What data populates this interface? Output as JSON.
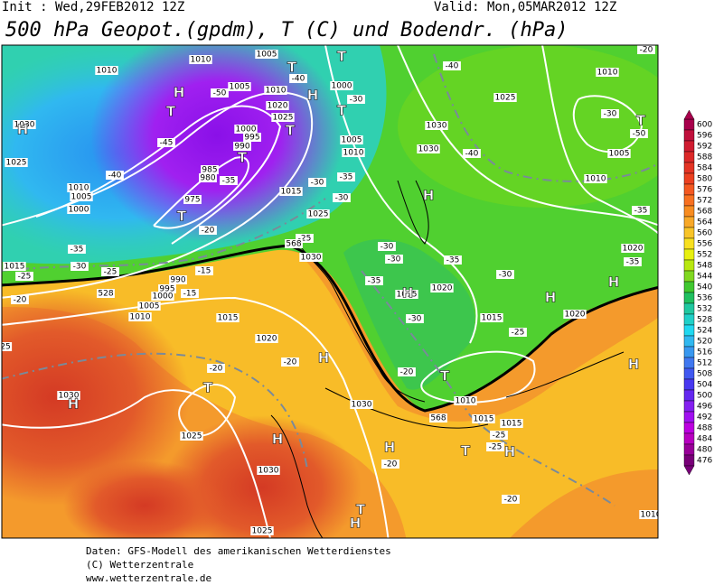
{
  "header": {
    "init": "Init : Wed,29FEB2012 12Z",
    "valid": "Valid: Mon,05MAR2012 12Z",
    "title": "500 hPa Geopot.(gpdm), T (C) und Bodendr. (hPa)"
  },
  "footer": [
    "Daten: GFS-Modell des amerikanischen Wetterdienstes",
    "(C) Wetterzentrale",
    "www.wetterzentrale.de"
  ],
  "map": {
    "isobar_labels": [
      "1010",
      "1010",
      "1005",
      "1005",
      "1010",
      "1020",
      "1025",
      "1000",
      "1000",
      "995",
      "990",
      "985",
      "980",
      "975",
      "1005",
      "1010",
      "1015",
      "1025",
      "1030",
      "1025",
      "1010",
      "1005",
      "1000",
      "1015",
      "990",
      "995",
      "1000",
      "1005",
      "1010",
      "1015",
      "1020",
      "1030",
      "1030",
      "1030",
      "1025",
      "1010",
      "1005",
      "1010",
      "1020",
      "1020",
      "1015",
      "1020",
      "1010",
      "1015",
      "1015",
      "1030",
      "1030",
      "1025",
      "1030",
      "1025",
      "1015",
      "1010",
      "25"
    ],
    "temperature_labels": [
      "-40",
      "-50",
      "-45",
      "-40",
      "-35",
      "-30",
      "-30",
      "-35",
      "-25",
      "-20",
      "-15",
      "-15",
      "-35",
      "-30",
      "-25",
      "-25",
      "-20",
      "-40",
      "-30",
      "-40",
      "-30",
      "-50",
      "-35",
      "-35",
      "-30",
      "-30",
      "-35",
      "-30",
      "-35",
      "-30",
      "-25",
      "-20",
      "-20",
      "-20",
      "-20",
      "-25",
      "-25",
      "-20",
      "-20"
    ],
    "geopotential_labels": [
      "528",
      "568",
      "568"
    ],
    "pressure_centers": [
      "H",
      "H",
      "H",
      "H",
      "H",
      "H",
      "H",
      "H",
      "H",
      "H",
      "H",
      "H",
      "H",
      "H",
      "T",
      "T",
      "T",
      "T",
      "T",
      "T",
      "T",
      "T",
      "T",
      "T",
      "T",
      "T"
    ]
  },
  "colorbar": {
    "labels": [
      600,
      596,
      592,
      588,
      584,
      580,
      576,
      572,
      568,
      564,
      560,
      556,
      552,
      548,
      544,
      540,
      536,
      532,
      528,
      524,
      520,
      516,
      512,
      508,
      504,
      500,
      496,
      492,
      488,
      484,
      480,
      476
    ],
    "colors": [
      "#a8004c",
      "#c0103c",
      "#d01c30",
      "#dc2828",
      "#e43424",
      "#ec4020",
      "#f45820",
      "#f87020",
      "#f88c20",
      "#f8a828",
      "#f8c428",
      "#f8e020",
      "#e8f010",
      "#b8e810",
      "#80d820",
      "#40c830",
      "#20c060",
      "#20c8a0",
      "#20d0c8",
      "#20d8f0",
      "#30b8f0",
      "#3898f0",
      "#4078f0",
      "#4058f0",
      "#4838f0",
      "#6428f0",
      "#8420f0",
      "#a010f0",
      "#bc00e0",
      "#b800c0",
      "#980098",
      "#780078"
    ]
  }
}
